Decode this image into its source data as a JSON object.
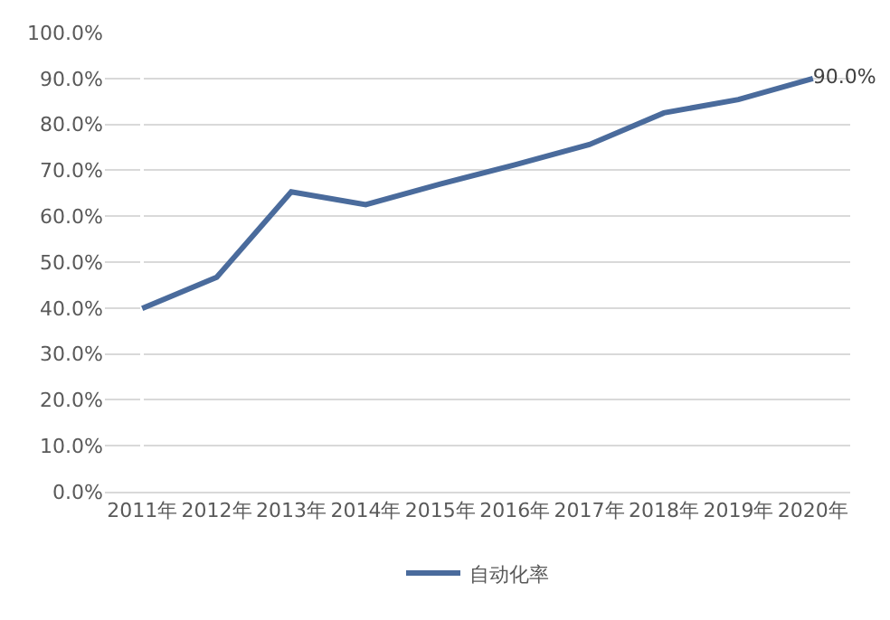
{
  "chart_data": {
    "type": "line",
    "categories": [
      "2011年",
      "2012年",
      "2013年",
      "2014年",
      "2015年",
      "2016年",
      "2017年",
      "2018年",
      "2019年",
      "2020年"
    ],
    "series": [
      {
        "name": "自动化率",
        "color": "#4a6b9c",
        "values": [
          39.9,
          46.7,
          65.3,
          62.5,
          67.0,
          71.2,
          75.6,
          82.5,
          85.4,
          90.0
        ],
        "value_labels": [
          null,
          null,
          null,
          null,
          null,
          null,
          null,
          null,
          null,
          "90.0%"
        ]
      }
    ],
    "ylim": [
      0,
      100
    ],
    "yticks": [
      {
        "value": 0,
        "label": "0.0%"
      },
      {
        "value": 10,
        "label": "10.0%"
      },
      {
        "value": 20,
        "label": "20.0%"
      },
      {
        "value": 30,
        "label": "30.0%"
      },
      {
        "value": 40,
        "label": "40.0%"
      },
      {
        "value": 50,
        "label": "50.0%"
      },
      {
        "value": 60,
        "label": "60.0%"
      },
      {
        "value": 70,
        "label": "70.0%"
      },
      {
        "value": 80,
        "label": "80.0%"
      },
      {
        "value": 90,
        "label": "90.0%"
      },
      {
        "value": 100,
        "label": "100.0%"
      }
    ],
    "grid": "y",
    "legend": "bottom",
    "marker": "none",
    "line_style": "solid"
  }
}
